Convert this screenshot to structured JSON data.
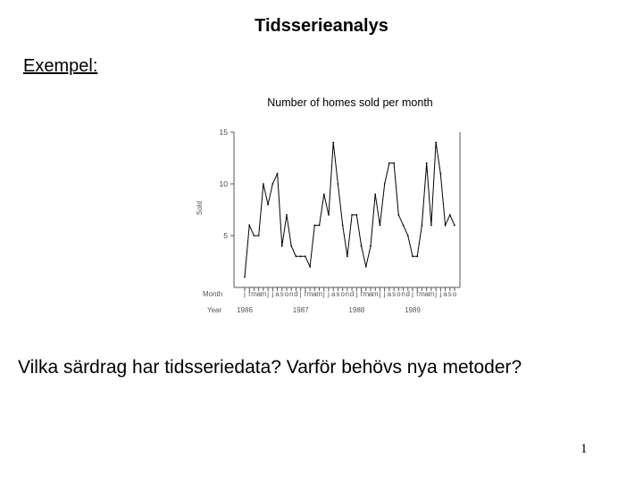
{
  "slide": {
    "title": "Tidsserieanalys",
    "example_label": "Exempel:",
    "question": "Vilka särdrag har tidsseriedata? Varför behövs nya metoder?",
    "page_number": "1"
  },
  "chart_data": {
    "type": "line",
    "title": "Number of homes sold per month",
    "ylabel": "Sold",
    "ylim": [
      0,
      15
    ],
    "yticks": [
      5,
      10,
      15
    ],
    "grid": false,
    "month_row_label": "Month",
    "year_row_label": "Year",
    "month_letters": [
      "j",
      "f",
      "m",
      "a",
      "m",
      "j",
      "j",
      "a",
      "s",
      "o",
      "n",
      "d",
      "j",
      "f",
      "m",
      "a",
      "m",
      "j",
      "j",
      "a",
      "s",
      "o",
      "n",
      "d",
      "j",
      "f",
      "m",
      "a",
      "m",
      "j",
      "j",
      "a",
      "s",
      "o",
      "n",
      "d",
      "j",
      "f",
      "m",
      "a",
      "m",
      "j",
      "j",
      "a",
      "s",
      "o"
    ],
    "year_labels": [
      {
        "index": 0,
        "label": "1986"
      },
      {
        "index": 12,
        "label": "1987"
      },
      {
        "index": 24,
        "label": "1988"
      },
      {
        "index": 36,
        "label": "1989"
      }
    ],
    "series": [
      {
        "values": [
          1,
          6,
          5,
          5,
          10,
          8,
          10,
          11,
          4,
          7,
          4,
          3,
          3,
          3,
          2,
          6,
          6,
          9,
          7,
          14,
          10,
          6,
          3,
          7,
          7,
          4,
          2,
          4,
          9,
          6,
          10,
          12,
          12,
          7,
          6,
          5,
          3,
          3,
          6,
          12,
          6,
          14,
          11,
          6,
          7,
          6
        ]
      }
    ]
  }
}
